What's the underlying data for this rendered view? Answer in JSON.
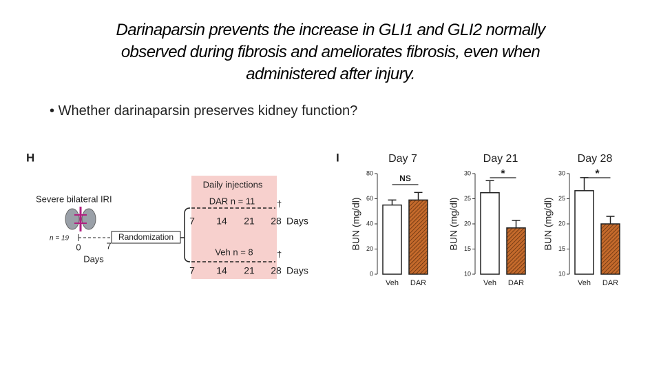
{
  "title_lines": [
    "Darinaparsin prevents the increase in GLI1 and GLI2 normally",
    "observed during fibrosis and ameliorates fibrosis, even when",
    "administered after injury."
  ],
  "bullet": "Whether darinaparsin preserves kidney function?",
  "diagram": {
    "panel_h": "H",
    "panel_i": "I",
    "injury": "Severe bilateral IRI",
    "n_total": "n = 19",
    "pre_ticks": [
      "0",
      "7"
    ],
    "pre_axis": "Days",
    "randomization": "Randomization",
    "injections": "Daily injections",
    "dar_group": "DAR n = 11",
    "veh_group": "Veh n = 8",
    "dagger": "†",
    "post_ticks": [
      "7",
      "14",
      "21",
      "28"
    ],
    "post_axis": "Days"
  },
  "chart_data": [
    {
      "type": "bar",
      "title": "Day 7",
      "y_label": "BUN (mg/dl)",
      "categories": [
        "Veh",
        "DAR"
      ],
      "values": [
        55,
        59
      ],
      "errors": [
        4,
        6
      ],
      "colors": [
        "#ffffff",
        "#c46a2c"
      ],
      "hatch": [
        false,
        true
      ],
      "ylim": [
        0,
        80
      ],
      "yticks": [
        0,
        20,
        40,
        60,
        80
      ],
      "annotation": "NS"
    },
    {
      "type": "bar",
      "title": "Day 21",
      "y_label": "BUN (mg/dl)",
      "categories": [
        "Veh",
        "DAR"
      ],
      "values": [
        26.2,
        19.2
      ],
      "errors": [
        2.4,
        1.5
      ],
      "colors": [
        "#ffffff",
        "#c46a2c"
      ],
      "hatch": [
        false,
        true
      ],
      "ylim": [
        10,
        30
      ],
      "yticks": [
        10,
        15,
        20,
        25,
        30
      ],
      "annotation": "*"
    },
    {
      "type": "bar",
      "title": "Day 28",
      "y_label": "BUN (mg/dl)",
      "categories": [
        "Veh",
        "DAR"
      ],
      "values": [
        26.6,
        20
      ],
      "errors": [
        2.6,
        1.5
      ],
      "colors": [
        "#ffffff",
        "#c46a2c"
      ],
      "hatch": [
        false,
        true
      ],
      "ylim": [
        10,
        30
      ],
      "yticks": [
        10,
        15,
        20,
        25,
        30
      ],
      "annotation": "*"
    }
  ]
}
